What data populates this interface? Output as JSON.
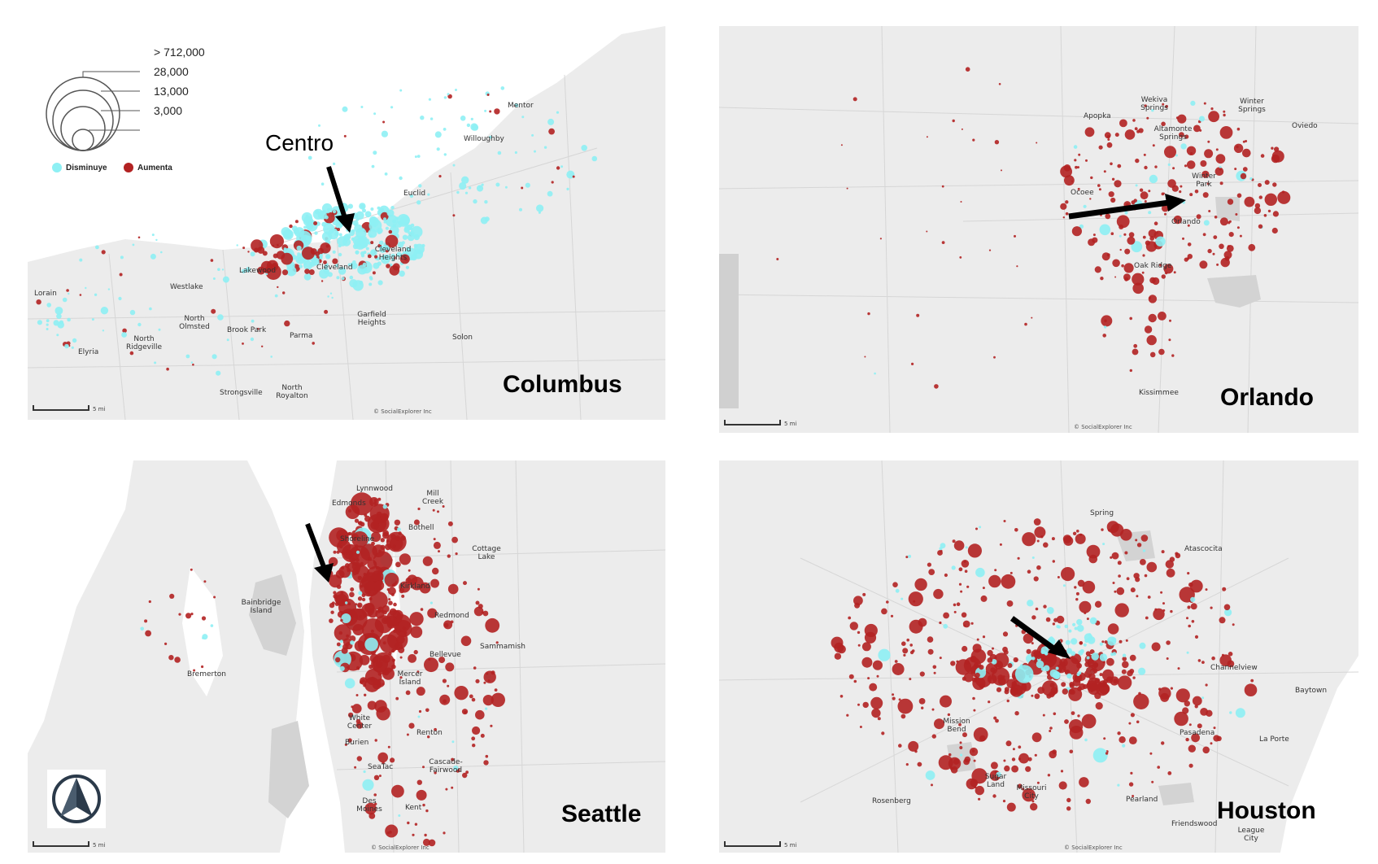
{
  "colors": {
    "decrease": "#8ef0f4",
    "increase": "#b22222",
    "land": "#ececec",
    "water": "#ffffff",
    "road": "#d6d6d6"
  },
  "legend": {
    "sizes": [
      "> 712,000",
      "28,000",
      "13,000",
      "3,000"
    ],
    "decrease_label": "Disminuye",
    "increase_label": "Aumenta"
  },
  "annotation": {
    "centro_label": "Centro"
  },
  "credit": "© SocialExplorer Inc",
  "scale_label": "5 mi",
  "icons": {
    "north_arrow": "north-arrow-icon"
  },
  "panels": [
    {
      "city": "Columbus",
      "places": [
        "Lorain",
        "Westlake",
        "North Olmsted",
        "Brook Park",
        "North Ridgeville",
        "Elyria",
        "Parma",
        "Strongsville",
        "North Royalton",
        "Garfield Heights",
        "Solon",
        "Euclid",
        "Willoughby",
        "Mentor",
        "Cleveland Heights",
        "Lakewood",
        "Cleveland"
      ]
    },
    {
      "city": "Orlando",
      "places": [
        "Apopka",
        "Wekiva Springs",
        "Altamonte Springs",
        "Winter Springs",
        "Oviedo",
        "Winter Park",
        "Ocoee",
        "Orlando",
        "Oak Ridge",
        "Kissimmee"
      ]
    },
    {
      "city": "Seattle",
      "places": [
        "Lynnwood",
        "Edmonds",
        "Mill Creek",
        "Shoreline",
        "Bothell",
        "Cottage Lake",
        "Kirkland",
        "Bainbridge Island",
        "Redmond",
        "Sammamish",
        "Bellevue",
        "Bremerton",
        "Mercer Island",
        "White Center",
        "Burien",
        "Renton",
        "SeaTac",
        "Cascade-Fairwood",
        "Des Moines",
        "Kent"
      ]
    },
    {
      "city": "Houston",
      "places": [
        "Spring",
        "Atascocita",
        "Channelview",
        "Baytown",
        "Mission Bend",
        "Pasadena",
        "La Porte",
        "Sugar Land",
        "Missouri City",
        "Rosenberg",
        "Pearland",
        "Friendswood",
        "League City"
      ]
    }
  ]
}
